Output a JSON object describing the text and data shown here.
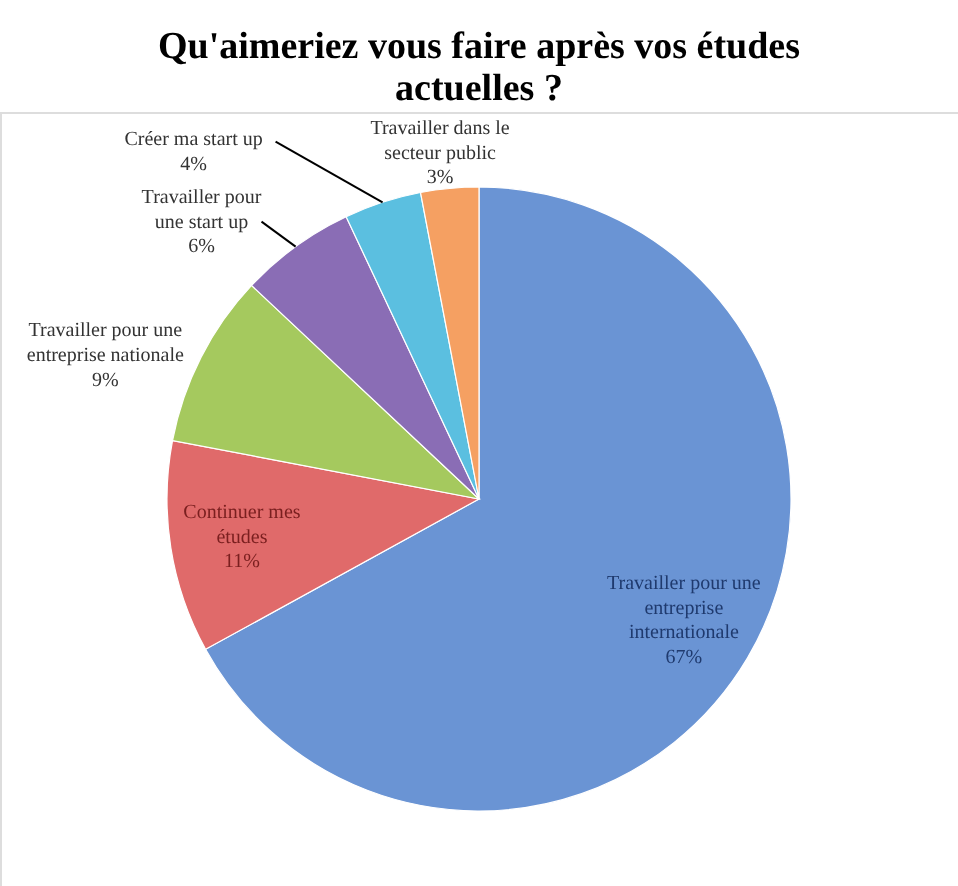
{
  "chart_data": {
    "type": "pie",
    "title": "Qu'aimeriez vous faire après vos études actuelles ?",
    "categories": [
      "Travailler pour une entreprise internationale",
      "Continuer mes études",
      "Travailler pour une entreprise nationale",
      "Travailler pour une start up",
      "Créer ma start up",
      "Travailler dans le secteur public"
    ],
    "values": [
      67,
      11,
      9,
      6,
      4,
      3
    ],
    "colors": [
      "#6a94d4",
      "#e06a6a",
      "#a5c95e",
      "#8a6db5",
      "#5bbfe0",
      "#f5a062"
    ],
    "value_labels": [
      "67%",
      "11%",
      "9%",
      "6%",
      "4%",
      "3%"
    ]
  }
}
